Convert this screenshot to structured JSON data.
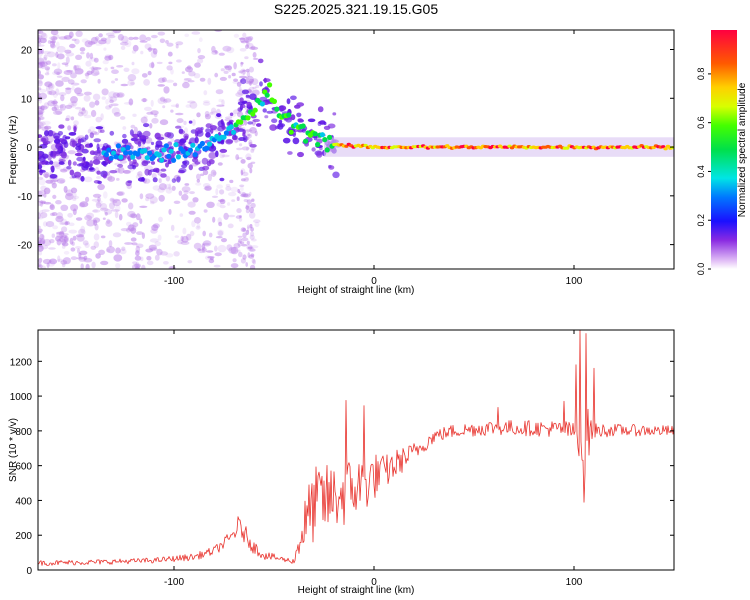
{
  "title": "S225.2025.321.19.15.G05",
  "chart_data": [
    {
      "type": "heatmap",
      "xlabel": "Height of straight line (km)",
      "ylabel": "Frequency (Hz)",
      "xlim": [
        -168,
        150
      ],
      "ylim": [
        -25,
        24
      ],
      "xticks": [
        -100,
        0,
        100
      ],
      "yticks": [
        -20,
        -10,
        0,
        10,
        20
      ],
      "ridge": {
        "x": [
          -130,
          -110,
          -95,
          -85,
          -75,
          -68,
          -62,
          -57,
          -52,
          -48,
          -42,
          -36,
          -30,
          -25,
          -20,
          -15,
          -10,
          -5,
          0,
          30,
          60,
          90,
          100,
          110,
          150
        ],
        "freq": [
          -1.5,
          -1.2,
          -1.0,
          0.5,
          2.0,
          4.5,
          7.0,
          9.0,
          11.0,
          7.5,
          5.0,
          3.5,
          2.5,
          1.5,
          0.5,
          0.2,
          0.2,
          0.1,
          0.0,
          0.0,
          0.0,
          0.0,
          0.0,
          0.0,
          0.0
        ]
      },
      "colorbar": {
        "label": "Normalized spectral amplitude",
        "ticks": [
          "0.0",
          "0.2",
          "0.4",
          "0.6",
          "0.8"
        ],
        "tick_values": [
          0.0,
          0.2,
          0.4,
          0.6,
          0.8
        ],
        "range": [
          0.0,
          0.98
        ]
      }
    },
    {
      "type": "line",
      "xlabel": "Height of straight line (km)",
      "ylabel": "SNR (10 * v/v)",
      "xlim": [
        -168,
        150
      ],
      "ylim": [
        0,
        1380
      ],
      "xticks": [
        -100,
        0,
        100
      ],
      "yticks": [
        0,
        200,
        400,
        600,
        800,
        1000,
        1200
      ],
      "color": "#e8322c",
      "series": [
        {
          "name": "SNR",
          "x": [
            -168,
            -140,
            -110,
            -90,
            -80,
            -72,
            -68,
            -66,
            -63,
            -60,
            -55,
            -45,
            -40,
            -36,
            -32,
            -28,
            -24,
            -20,
            -15,
            -12,
            -8,
            -4,
            0,
            5,
            10,
            15,
            20,
            25,
            30,
            40,
            60,
            80,
            95,
            100,
            103,
            105,
            107,
            110,
            120,
            150
          ],
          "values": [
            40,
            45,
            55,
            75,
            110,
            180,
            250,
            230,
            180,
            130,
            85,
            60,
            50,
            220,
            330,
            400,
            400,
            420,
            440,
            460,
            480,
            500,
            540,
            560,
            600,
            640,
            680,
            720,
            770,
            800,
            820,
            815,
            810,
            790,
            760,
            660,
            780,
            800,
            805,
            800
          ],
          "amplitude": [
            15,
            15,
            15,
            20,
            25,
            40,
            60,
            60,
            50,
            40,
            25,
            15,
            15,
            140,
            200,
            220,
            210,
            200,
            200,
            190,
            180,
            160,
            140,
            100,
            90,
            70,
            55,
            45,
            40,
            40,
            45,
            45,
            50,
            60,
            120,
            200,
            150,
            45,
            35,
            30
          ]
        }
      ],
      "spikes": [
        {
          "x": -14,
          "value": 975
        },
        {
          "x": -5,
          "value": 945
        },
        {
          "x": 62,
          "value": 935
        },
        {
          "x": 95,
          "value": 970
        },
        {
          "x": 101,
          "value": 1180
        },
        {
          "x": 103,
          "value": 1380
        },
        {
          "x": 105,
          "value": 390
        },
        {
          "x": 106,
          "value": 1360
        },
        {
          "x": 110,
          "value": 1160
        }
      ]
    }
  ]
}
